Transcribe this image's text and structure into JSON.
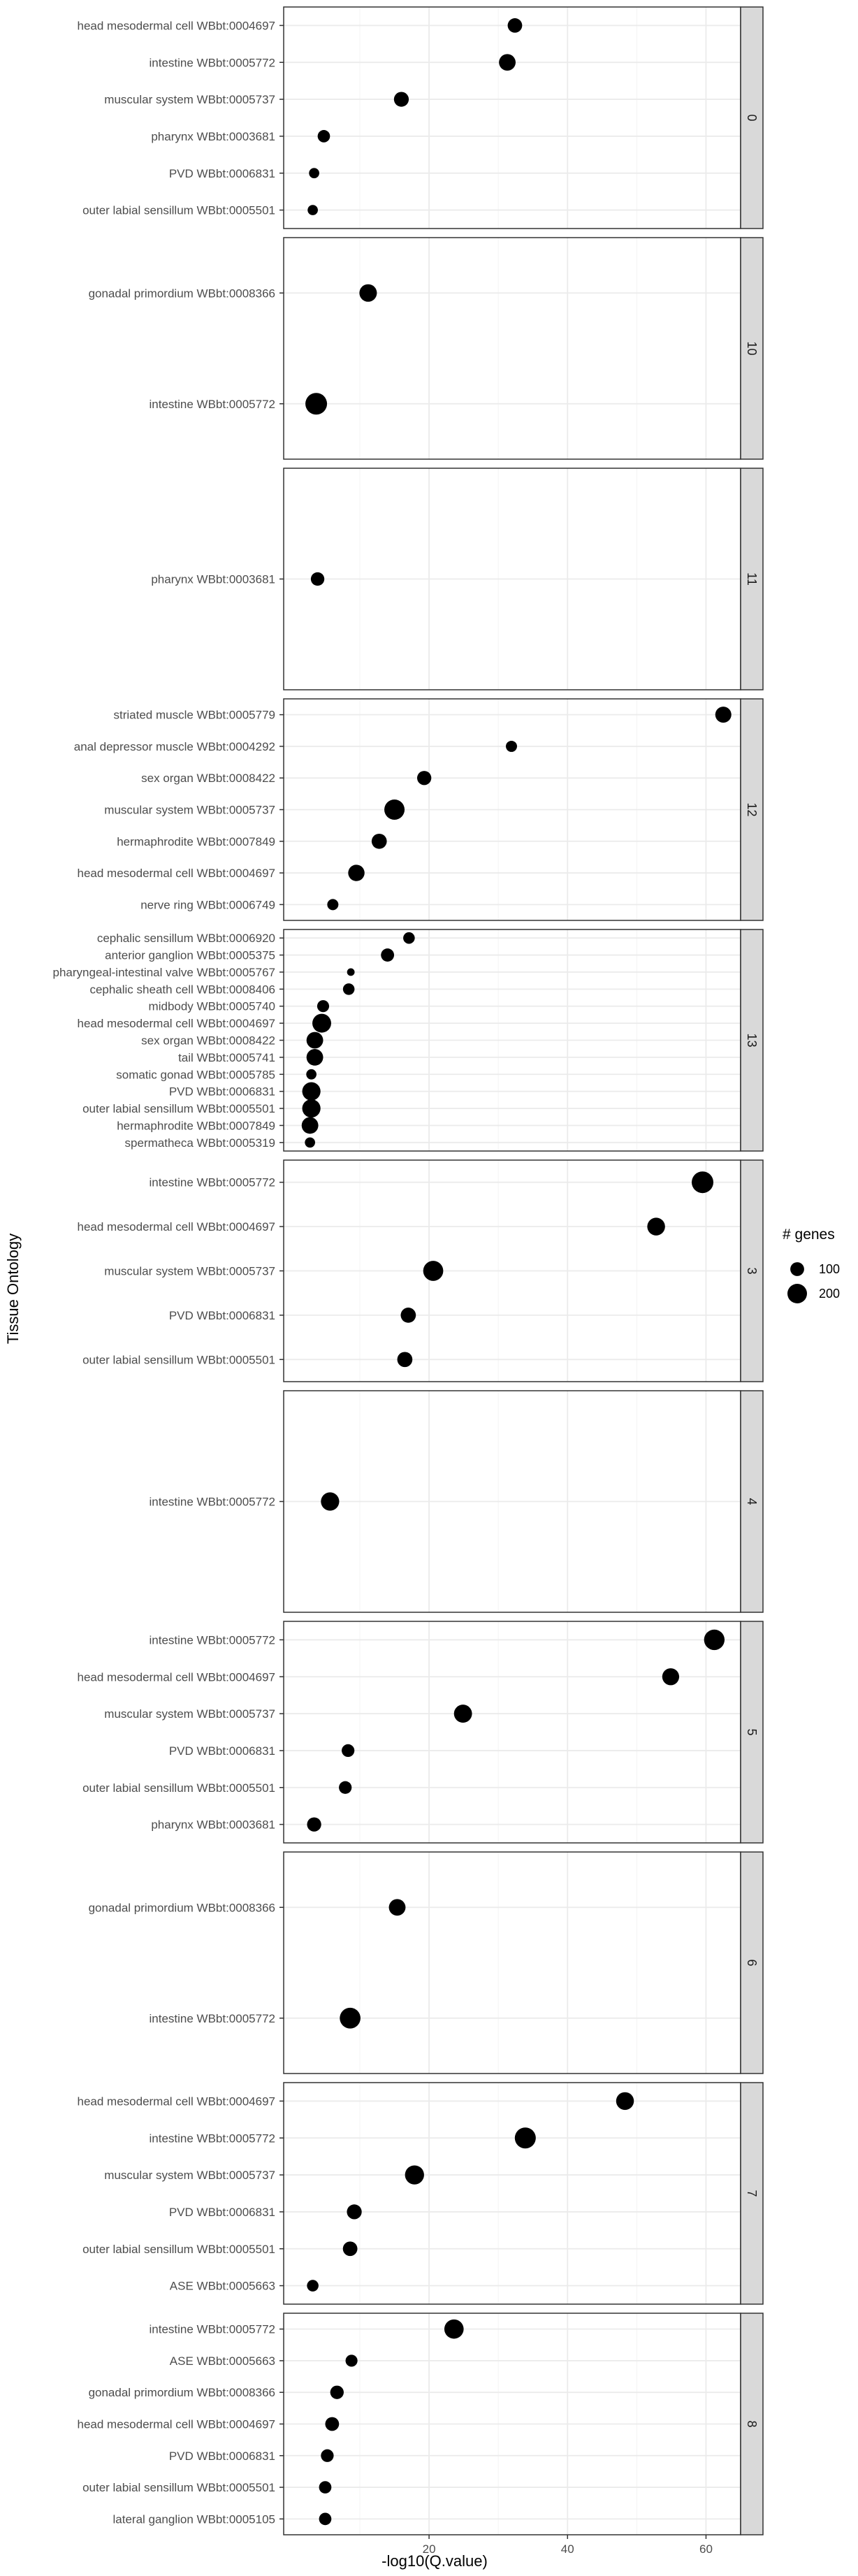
{
  "chart_data": {
    "type": "scatter",
    "xlabel": "-log10(Q.value)",
    "ylabel": "Tissue Ontology",
    "x_ticks": [
      20,
      40,
      60
    ],
    "xlim": [
      -1,
      65
    ],
    "grid": true,
    "legend": {
      "title": "# genes",
      "position": "right",
      "entries": [
        {
          "label": "100",
          "value": 100
        },
        {
          "label": "200",
          "value": 200
        }
      ]
    },
    "facets": [
      {
        "label": "0",
        "points": [
          {
            "y": "head mesodermal cell WBbt:0004697",
            "x": 32.4,
            "genes": 110
          },
          {
            "y": "intestine WBbt:0005772",
            "x": 31.3,
            "genes": 145
          },
          {
            "y": "muscular system WBbt:0005737",
            "x": 16.0,
            "genes": 115
          },
          {
            "y": "pharynx WBbt:0003681",
            "x": 4.8,
            "genes": 80
          },
          {
            "y": "PVD WBbt:0006831",
            "x": 3.4,
            "genes": 55
          },
          {
            "y": "outer labial sensillum WBbt:0005501",
            "x": 3.2,
            "genes": 55
          }
        ]
      },
      {
        "label": "10",
        "points": [
          {
            "y": "gonadal primordium WBbt:0008366",
            "x": 11.2,
            "genes": 160
          },
          {
            "y": "intestine WBbt:0005772",
            "x": 3.7,
            "genes": 245
          }
        ]
      },
      {
        "label": "11",
        "points": [
          {
            "y": "pharynx WBbt:0003681",
            "x": 3.9,
            "genes": 95
          }
        ]
      },
      {
        "label": "12",
        "points": [
          {
            "y": "striated muscle WBbt:0005779",
            "x": 62.5,
            "genes": 135
          },
          {
            "y": "anal depressor muscle WBbt:0004292",
            "x": 31.9,
            "genes": 65
          },
          {
            "y": "sex organ WBbt:0008422",
            "x": 19.3,
            "genes": 105
          },
          {
            "y": "muscular system WBbt:0005737",
            "x": 15.0,
            "genes": 215
          },
          {
            "y": "hermaphrodite WBbt:0007849",
            "x": 12.8,
            "genes": 120
          },
          {
            "y": "head mesodermal cell WBbt:0004697",
            "x": 9.5,
            "genes": 140
          },
          {
            "y": "nerve ring WBbt:0006749",
            "x": 6.1,
            "genes": 65
          }
        ]
      },
      {
        "label": "13",
        "points": [
          {
            "y": "cephalic sensillum WBbt:0006920",
            "x": 17.1,
            "genes": 70
          },
          {
            "y": "anterior ganglion WBbt:0005375",
            "x": 14.0,
            "genes": 90
          },
          {
            "y": "pharyngeal-intestinal valve WBbt:0005767",
            "x": 8.7,
            "genes": 30
          },
          {
            "y": "cephalic sheath cell WBbt:0008406",
            "x": 8.4,
            "genes": 70
          },
          {
            "y": "midbody WBbt:0005740",
            "x": 4.7,
            "genes": 75
          },
          {
            "y": "head mesodermal cell WBbt:0004697",
            "x": 4.5,
            "genes": 185
          },
          {
            "y": "sex organ WBbt:0008422",
            "x": 3.5,
            "genes": 145
          },
          {
            "y": "tail WBbt:0005741",
            "x": 3.5,
            "genes": 145
          },
          {
            "y": "somatic gonad WBbt:0005785",
            "x": 3.0,
            "genes": 55
          },
          {
            "y": "PVD WBbt:0006831",
            "x": 3.0,
            "genes": 175
          },
          {
            "y": "outer labial sensillum WBbt:0005501",
            "x": 3.0,
            "genes": 175
          },
          {
            "y": "hermaphrodite WBbt:0007849",
            "x": 2.8,
            "genes": 145
          },
          {
            "y": "spermatheca WBbt:0005319",
            "x": 2.8,
            "genes": 55
          }
        ]
      },
      {
        "label": "3",
        "points": [
          {
            "y": "intestine WBbt:0005772",
            "x": 59.5,
            "genes": 245
          },
          {
            "y": "head mesodermal cell WBbt:0004697",
            "x": 52.8,
            "genes": 165
          },
          {
            "y": "muscular system WBbt:0005737",
            "x": 20.6,
            "genes": 210
          },
          {
            "y": "PVD WBbt:0006831",
            "x": 17.0,
            "genes": 120
          },
          {
            "y": "outer labial sensillum WBbt:0005501",
            "x": 16.5,
            "genes": 120
          }
        ]
      },
      {
        "label": "4",
        "points": [
          {
            "y": "intestine WBbt:0005772",
            "x": 5.7,
            "genes": 175
          }
        ]
      },
      {
        "label": "5",
        "points": [
          {
            "y": "intestine WBbt:0005772",
            "x": 61.2,
            "genes": 220
          },
          {
            "y": "head mesodermal cell WBbt:0004697",
            "x": 54.9,
            "genes": 150
          },
          {
            "y": "muscular system WBbt:0005737",
            "x": 24.9,
            "genes": 170
          },
          {
            "y": "PVD WBbt:0006831",
            "x": 8.3,
            "genes": 85
          },
          {
            "y": "outer labial sensillum WBbt:0005501",
            "x": 7.9,
            "genes": 85
          },
          {
            "y": "pharynx WBbt:0003681",
            "x": 3.4,
            "genes": 105
          }
        ]
      },
      {
        "label": "6",
        "points": [
          {
            "y": "gonadal primordium WBbt:0008366",
            "x": 15.4,
            "genes": 145
          },
          {
            "y": "intestine WBbt:0005772",
            "x": 8.6,
            "genes": 225
          }
        ]
      },
      {
        "label": "7",
        "points": [
          {
            "y": "head mesodermal cell WBbt:0004697",
            "x": 48.3,
            "genes": 165
          },
          {
            "y": "intestine WBbt:0005772",
            "x": 33.9,
            "genes": 230
          },
          {
            "y": "muscular system WBbt:0005737",
            "x": 17.9,
            "genes": 190
          },
          {
            "y": "PVD WBbt:0006831",
            "x": 9.2,
            "genes": 115
          },
          {
            "y": "outer labial sensillum WBbt:0005501",
            "x": 8.6,
            "genes": 110
          },
          {
            "y": "ASE WBbt:0005663",
            "x": 3.2,
            "genes": 70
          }
        ]
      },
      {
        "label": "8",
        "points": [
          {
            "y": "intestine WBbt:0005772",
            "x": 23.6,
            "genes": 195
          },
          {
            "y": "ASE WBbt:0005663",
            "x": 8.8,
            "genes": 75
          },
          {
            "y": "gonadal primordium WBbt:0008366",
            "x": 6.7,
            "genes": 95
          },
          {
            "y": "head mesodermal cell WBbt:0004697",
            "x": 6.0,
            "genes": 100
          },
          {
            "y": "PVD WBbt:0006831",
            "x": 5.3,
            "genes": 85
          },
          {
            "y": "outer labial sensillum WBbt:0005501",
            "x": 5.0,
            "genes": 80
          },
          {
            "y": "lateral ganglion WBbt:0005105",
            "x": 5.0,
            "genes": 80
          }
        ]
      }
    ]
  }
}
